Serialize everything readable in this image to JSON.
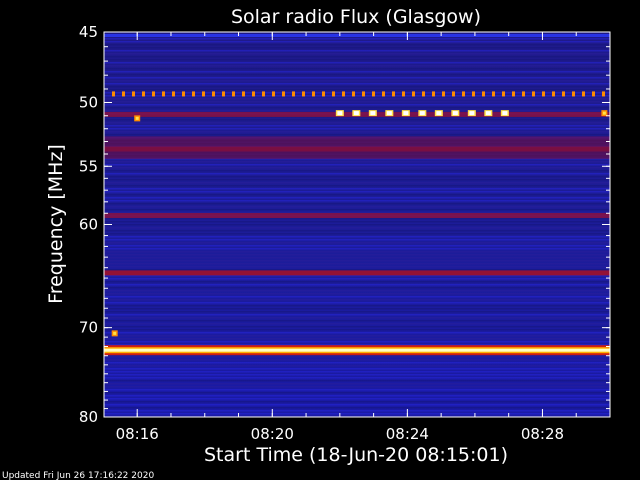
{
  "chart_data": {
    "type": "heatmap",
    "title": "Solar radio Flux (Glasgow)",
    "xlabel": "Start Time (18-Jun-20 08:15:01)",
    "ylabel": "Frequency [MHz]",
    "x_range": [
      "08:15:01",
      "08:30:00"
    ],
    "xticks": [
      "08:16",
      "08:20",
      "08:24",
      "08:28"
    ],
    "y_range_mhz": [
      45,
      80
    ],
    "yticks": [
      45,
      50,
      55,
      60,
      70,
      80
    ],
    "y_scale": "log",
    "colormap": [
      "#1a0f7a",
      "#2a2cff",
      "#8a0c3a",
      "#cf1f10",
      "#ff8c00",
      "#ffe24a",
      "#ffffff"
    ],
    "background_color": "#1a1a9a",
    "bands": [
      {
        "freq_mhz": 49.4,
        "intensity": "dashed-orange",
        "note": "intermittent points"
      },
      {
        "freq_mhz": 50.9,
        "intensity": "medium"
      },
      {
        "freq_mhz": 53.6,
        "intensity": "medium"
      },
      {
        "freq_mhz": 59.2,
        "intensity": "medium"
      },
      {
        "freq_mhz": 64.5,
        "intensity": "medium-high"
      },
      {
        "freq_mhz": 72.4,
        "intensity": "very-high"
      }
    ],
    "bursts": [
      {
        "time": "08:16",
        "freq_mhz": 51.2,
        "intensity": "high"
      },
      {
        "time": "08:15:20",
        "freq_mhz": 70.6,
        "intensity": "high"
      },
      {
        "time_start": "08:22",
        "time_end": "08:27",
        "freq_mhz": 50.8,
        "intensity": "very-high"
      },
      {
        "time": "08:29:50",
        "freq_mhz": 50.8,
        "intensity": "high"
      }
    ]
  },
  "footer": {
    "updated": "Updated Fri Jun 26 17:16:22 2020"
  }
}
